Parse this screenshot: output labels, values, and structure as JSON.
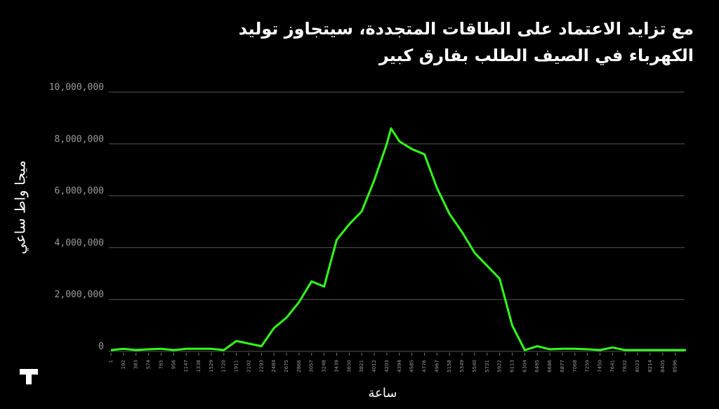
{
  "chart_data": {
    "type": "line",
    "title": "مع تزايد الاعتماد على الطاقات المتجددة، سيتجاوز توليد الكهرباء في الصيف الطلب بفارق كبير",
    "y_label": "ميجا واط ساعي",
    "x_label": "ساعة",
    "x": [
      1,
      192,
      383,
      574,
      765,
      956,
      1147,
      1338,
      1529,
      1720,
      1911,
      2102,
      2293,
      2484,
      2675,
      2866,
      3057,
      3248,
      3439,
      3630,
      3821,
      4012,
      4203,
      4267,
      4394,
      4585,
      4776,
      4967,
      5158,
      5349,
      5540,
      5731,
      5922,
      6113,
      6304,
      6495,
      6686,
      6877,
      7068,
      7259,
      7450,
      7641,
      7832,
      8023,
      8214,
      8405,
      8596,
      8760
    ],
    "series": [
      {
        "name": "توليد",
        "color": "#33ff1a",
        "values": [
          50000,
          100000,
          50000,
          80000,
          100000,
          50000,
          100000,
          100000,
          100000,
          50000,
          400000,
          300000,
          200000,
          900000,
          1300000,
          1900000,
          2700000,
          2500000,
          4300000,
          4900000,
          5400000,
          6600000,
          8000000,
          8600000,
          8100000,
          7800000,
          7600000,
          6300000,
          5300000,
          4600000,
          3800000,
          3300000,
          2800000,
          1000000,
          50000,
          200000,
          80000,
          100000,
          100000,
          80000,
          50000,
          150000,
          50000,
          50000,
          50000,
          50000,
          50000,
          50000
        ]
      }
    ],
    "xlim": [
      1,
      8760
    ],
    "xticks": [
      1,
      192,
      383,
      574,
      765,
      956,
      1147,
      1338,
      1529,
      1720,
      1911,
      2102,
      2293,
      2484,
      2675,
      2866,
      3057,
      3248,
      3439,
      3630,
      3821,
      4012,
      4203,
      4394,
      4585,
      4776,
      4967,
      5158,
      5349,
      5540,
      5731,
      5922,
      6113,
      6304,
      6495,
      6686,
      6877,
      7068,
      7259,
      7450,
      7641,
      7832,
      8023,
      8214,
      8405,
      8596
    ],
    "ylim": [
      0,
      10000000
    ],
    "yticks": [
      0,
      {
        "value": 2000000,
        "label": "2,000,000"
      },
      {
        "value": 4000000,
        "label": "4,000,000"
      },
      {
        "value": 6000000,
        "label": "6,000,000"
      },
      {
        "value": 8000000,
        "label": "8,000,000"
      },
      {
        "value": 10000000,
        "label": "10,000,000"
      }
    ],
    "grid": true
  }
}
